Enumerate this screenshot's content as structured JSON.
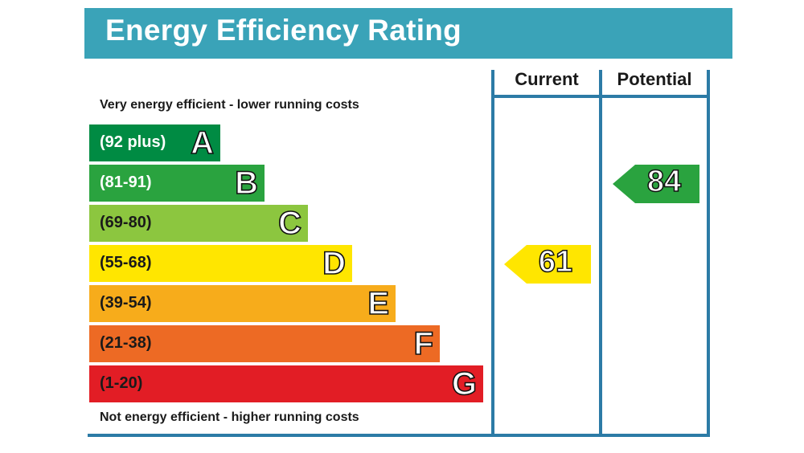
{
  "header": {
    "title": "Energy Efficiency Rating"
  },
  "notes": {
    "top": "Very energy efficient - lower running costs",
    "bottom": "Not energy efficient - higher running costs"
  },
  "columns": {
    "current": "Current",
    "potential": "Potential"
  },
  "chart_data": {
    "type": "bar",
    "categories": [
      "A",
      "B",
      "C",
      "D",
      "E",
      "F",
      "G"
    ],
    "bands": [
      {
        "letter": "A",
        "range": "(92 plus)",
        "min": 92,
        "max": 100,
        "color": "#008b43",
        "text_color": "#ffffff"
      },
      {
        "letter": "B",
        "range": "(81-91)",
        "min": 81,
        "max": 91,
        "color": "#2aa33f",
        "text_color": "#ffffff"
      },
      {
        "letter": "C",
        "range": "(69-80)",
        "min": 69,
        "max": 80,
        "color": "#8cc63f",
        "text_color": "#1a1a1a"
      },
      {
        "letter": "D",
        "range": "(55-68)",
        "min": 55,
        "max": 68,
        "color": "#ffe600",
        "text_color": "#1a1a1a"
      },
      {
        "letter": "E",
        "range": "(39-54)",
        "min": 39,
        "max": 54,
        "color": "#f7ac1b",
        "text_color": "#1a1a1a"
      },
      {
        "letter": "F",
        "range": "(21-38)",
        "min": 21,
        "max": 38,
        "color": "#ed6a24",
        "text_color": "#1a1a1a"
      },
      {
        "letter": "G",
        "range": "(1-20)",
        "min": 1,
        "max": 20,
        "color": "#e21d25",
        "text_color": "#1a1a1a"
      }
    ],
    "current": {
      "value": 61,
      "band": "D",
      "color": "#ffe600"
    },
    "potential": {
      "value": 84,
      "band": "B",
      "color": "#2aa33f"
    }
  }
}
